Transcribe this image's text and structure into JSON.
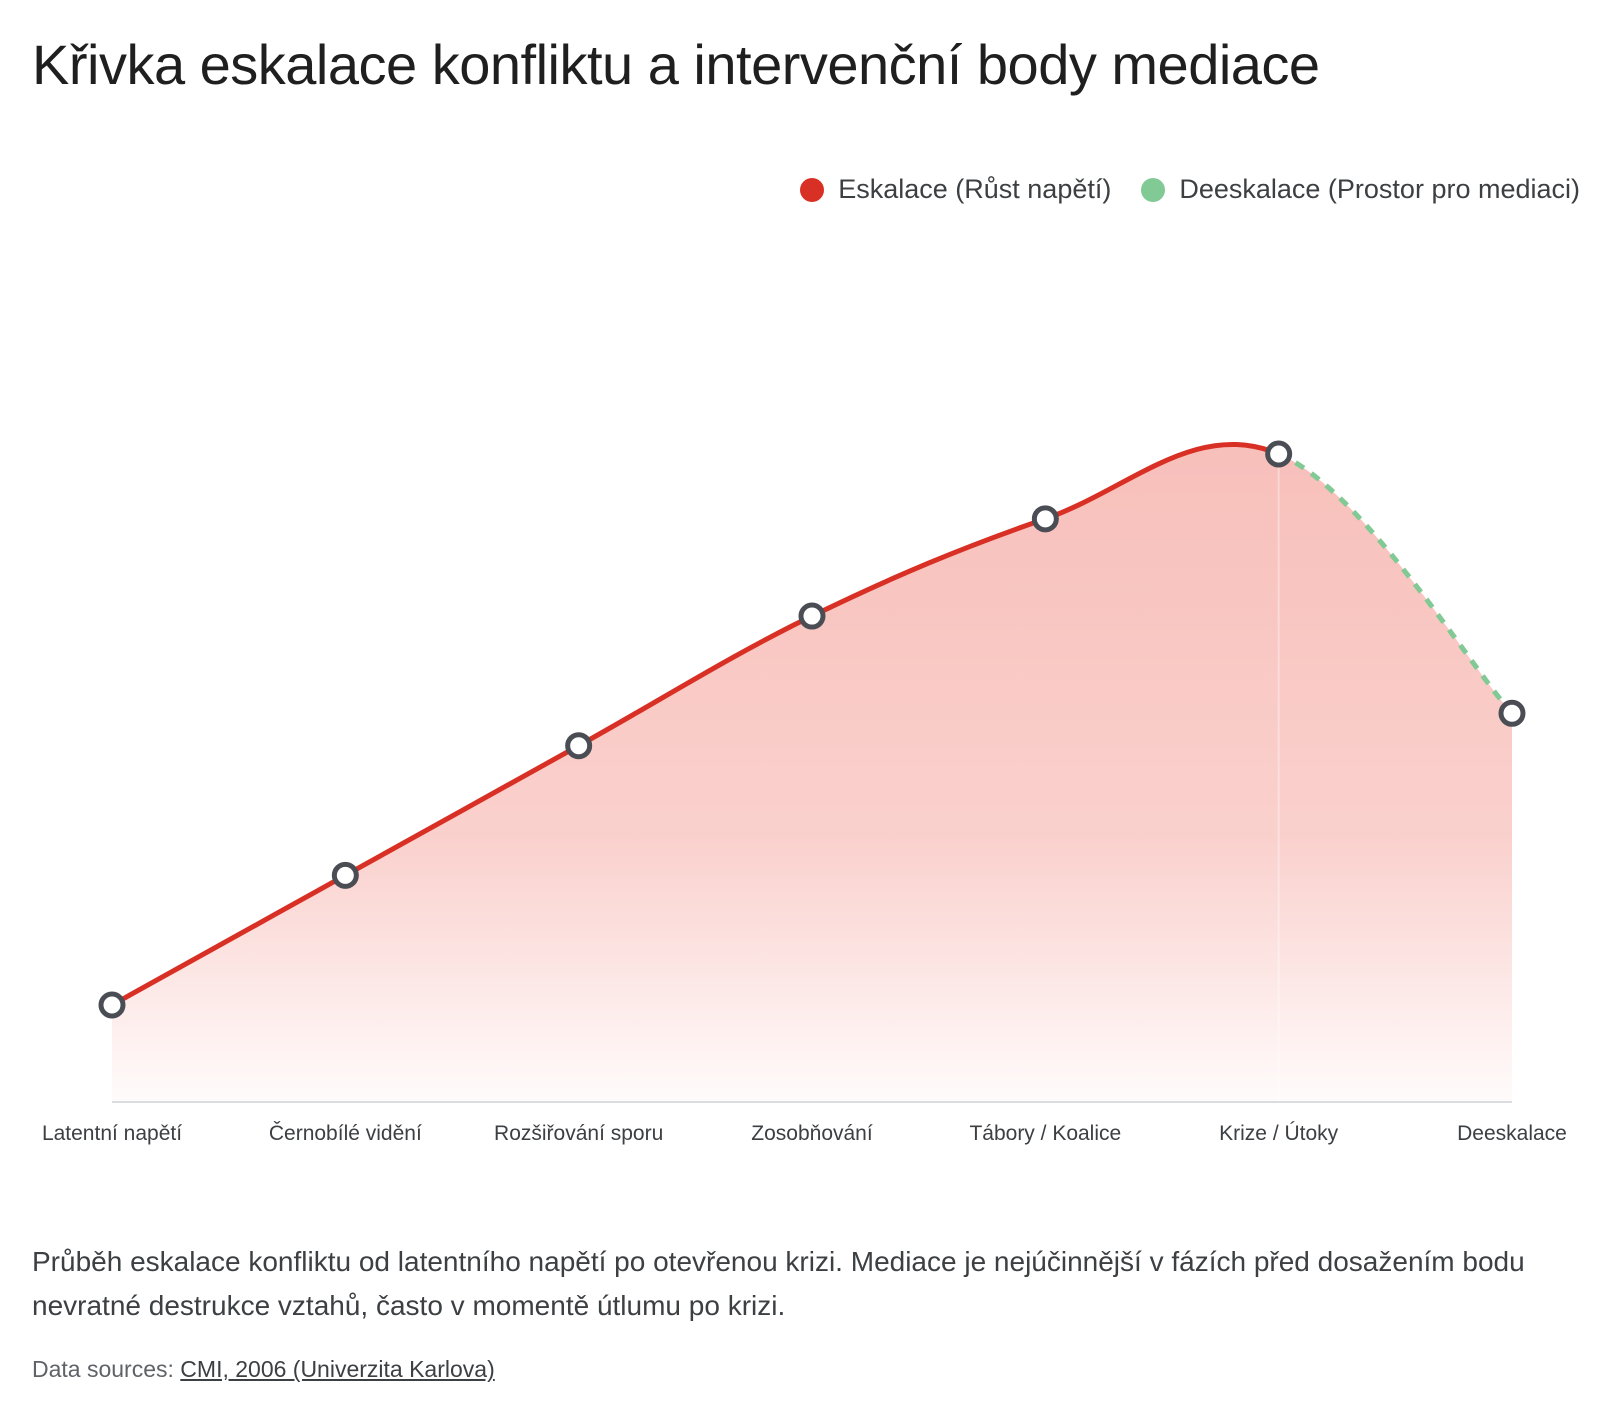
{
  "title": "Křivka eskalace konfliktu a intervenční body mediace",
  "legend": {
    "escalation_label": "Eskalace (Růst napětí)",
    "deescalation_label": "Deeskalace (Prostor pro mediaci)"
  },
  "colors": {
    "escalation": "#d93025",
    "deescalation": "#81c995",
    "area": "#f28b82",
    "marker_stroke": "#4a4e54"
  },
  "chart_data": {
    "type": "line",
    "categories": [
      "Latentní napětí",
      "Černobílé vidění",
      "Rozšiřování sporu",
      "Zosobňování",
      "Tábory / Koalice",
      "Krize / Útoky",
      "Deeskalace"
    ],
    "series": [
      {
        "name": "Eskalace (Růst napětí)",
        "values": [
          15,
          35,
          55,
          75,
          90,
          100,
          null
        ],
        "style": "solid",
        "color": "#d93025"
      },
      {
        "name": "Deeskalace (Prostor pro mediaci)",
        "values": [
          null,
          null,
          null,
          null,
          null,
          100,
          60
        ],
        "style": "dashed",
        "color": "#81c995"
      }
    ],
    "ylim": [
      0,
      100
    ],
    "grid": false,
    "y_axis_labels": false,
    "legend_position": "top-right"
  },
  "caption": "Průběh eskalace konfliktu od latentního napětí po otevřenou krizi. Mediace je nejúčinnější v fázích před dosažením bodu nevratné destrukce vztahů, často v momentě útlumu po krizi.",
  "sources": {
    "prefix": "Data sources:",
    "link_text": "CMI, 2006 (Univerzita Karlova)"
  }
}
